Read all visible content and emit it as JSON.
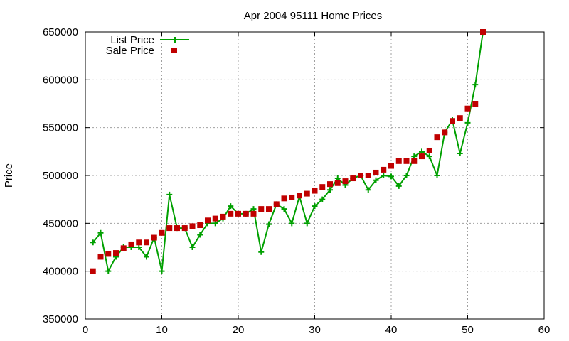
{
  "chart_data": {
    "type": "line",
    "title": "Apr 2004 95111 Home Prices",
    "xlabel": "",
    "ylabel": "Price",
    "xlim": [
      0,
      60
    ],
    "ylim": [
      350000,
      650000
    ],
    "x_ticks": [
      0,
      10,
      20,
      30,
      40,
      50,
      60
    ],
    "y_ticks": [
      350000,
      400000,
      450000,
      500000,
      550000,
      600000,
      650000
    ],
    "grid": true,
    "legend_position": "top-left",
    "series": [
      {
        "name": "List Price",
        "style": "line-plus",
        "color": "#00a000",
        "x": [
          1,
          2,
          3,
          4,
          5,
          6,
          7,
          8,
          9,
          10,
          11,
          12,
          13,
          14,
          15,
          16,
          17,
          18,
          19,
          20,
          21,
          22,
          23,
          24,
          25,
          26,
          27,
          28,
          29,
          30,
          31,
          32,
          33,
          34,
          35,
          36,
          37,
          38,
          39,
          40,
          41,
          42,
          43,
          44,
          45,
          46,
          47,
          48,
          49,
          50,
          51,
          52
        ],
        "y": [
          430000,
          440000,
          400000,
          415000,
          425000,
          425000,
          425000,
          415000,
          435000,
          400000,
          480000,
          445000,
          445000,
          425000,
          438000,
          450000,
          450000,
          455000,
          468000,
          460000,
          460000,
          465000,
          420000,
          449000,
          470000,
          465000,
          450000,
          478000,
          450000,
          468000,
          475000,
          485000,
          497000,
          490000,
          497000,
          500000,
          485000,
          495000,
          500000,
          499000,
          489000,
          500000,
          520000,
          525000,
          520000,
          500000,
          545000,
          558000,
          523000,
          555000,
          595000,
          650000
        ]
      },
      {
        "name": "Sale Price",
        "style": "square-points",
        "color": "#c00000",
        "x": [
          1,
          2,
          3,
          4,
          5,
          6,
          7,
          8,
          9,
          10,
          11,
          12,
          13,
          14,
          15,
          16,
          17,
          18,
          19,
          20,
          21,
          22,
          23,
          24,
          25,
          26,
          27,
          28,
          29,
          30,
          31,
          32,
          33,
          34,
          35,
          36,
          37,
          38,
          39,
          40,
          41,
          42,
          43,
          44,
          45,
          46,
          47,
          48,
          49,
          50,
          51,
          52
        ],
        "y": [
          400000,
          415000,
          418000,
          419000,
          424000,
          428000,
          430000,
          430000,
          435000,
          440000,
          445000,
          445000,
          445000,
          447000,
          448000,
          453000,
          455000,
          457000,
          460000,
          460000,
          460000,
          460000,
          465000,
          465000,
          470000,
          476000,
          477000,
          479000,
          481000,
          484000,
          488000,
          491000,
          492000,
          494000,
          497000,
          500000,
          500000,
          503000,
          506000,
          510000,
          515000,
          515000,
          515000,
          520000,
          526000,
          540000,
          545000,
          557000,
          560000,
          570000,
          575000,
          650000
        ]
      }
    ]
  }
}
